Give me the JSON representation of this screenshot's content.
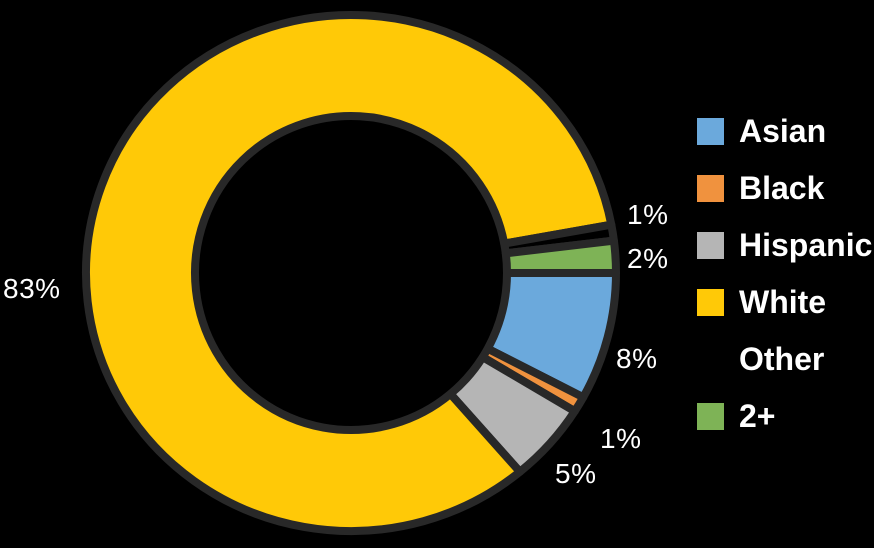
{
  "background_color": "#000000",
  "chart_data": {
    "type": "donut",
    "title": "",
    "legend_position": "right",
    "direction": "clockwise",
    "start_angle_deg": 0,
    "outline_color": "#282828",
    "label_color": "#ffffff",
    "slices": [
      {
        "label": "Asian",
        "value": 8,
        "pct_label": "8%",
        "color": "#6BA9DC"
      },
      {
        "label": "Black",
        "value": 1,
        "pct_label": "1%",
        "color": "#F0923E"
      },
      {
        "label": "Hispanic",
        "value": 5,
        "pct_label": "5%",
        "color": "#B5B5B5"
      },
      {
        "label": "White",
        "value": 83,
        "pct_label": "83%",
        "color": "#FFC907"
      },
      {
        "label": "Other",
        "value": 1,
        "pct_label": "1%",
        "color": "#000000"
      },
      {
        "label": "2+",
        "value": 2,
        "pct_label": "2%",
        "color": "#7EB356"
      }
    ]
  }
}
